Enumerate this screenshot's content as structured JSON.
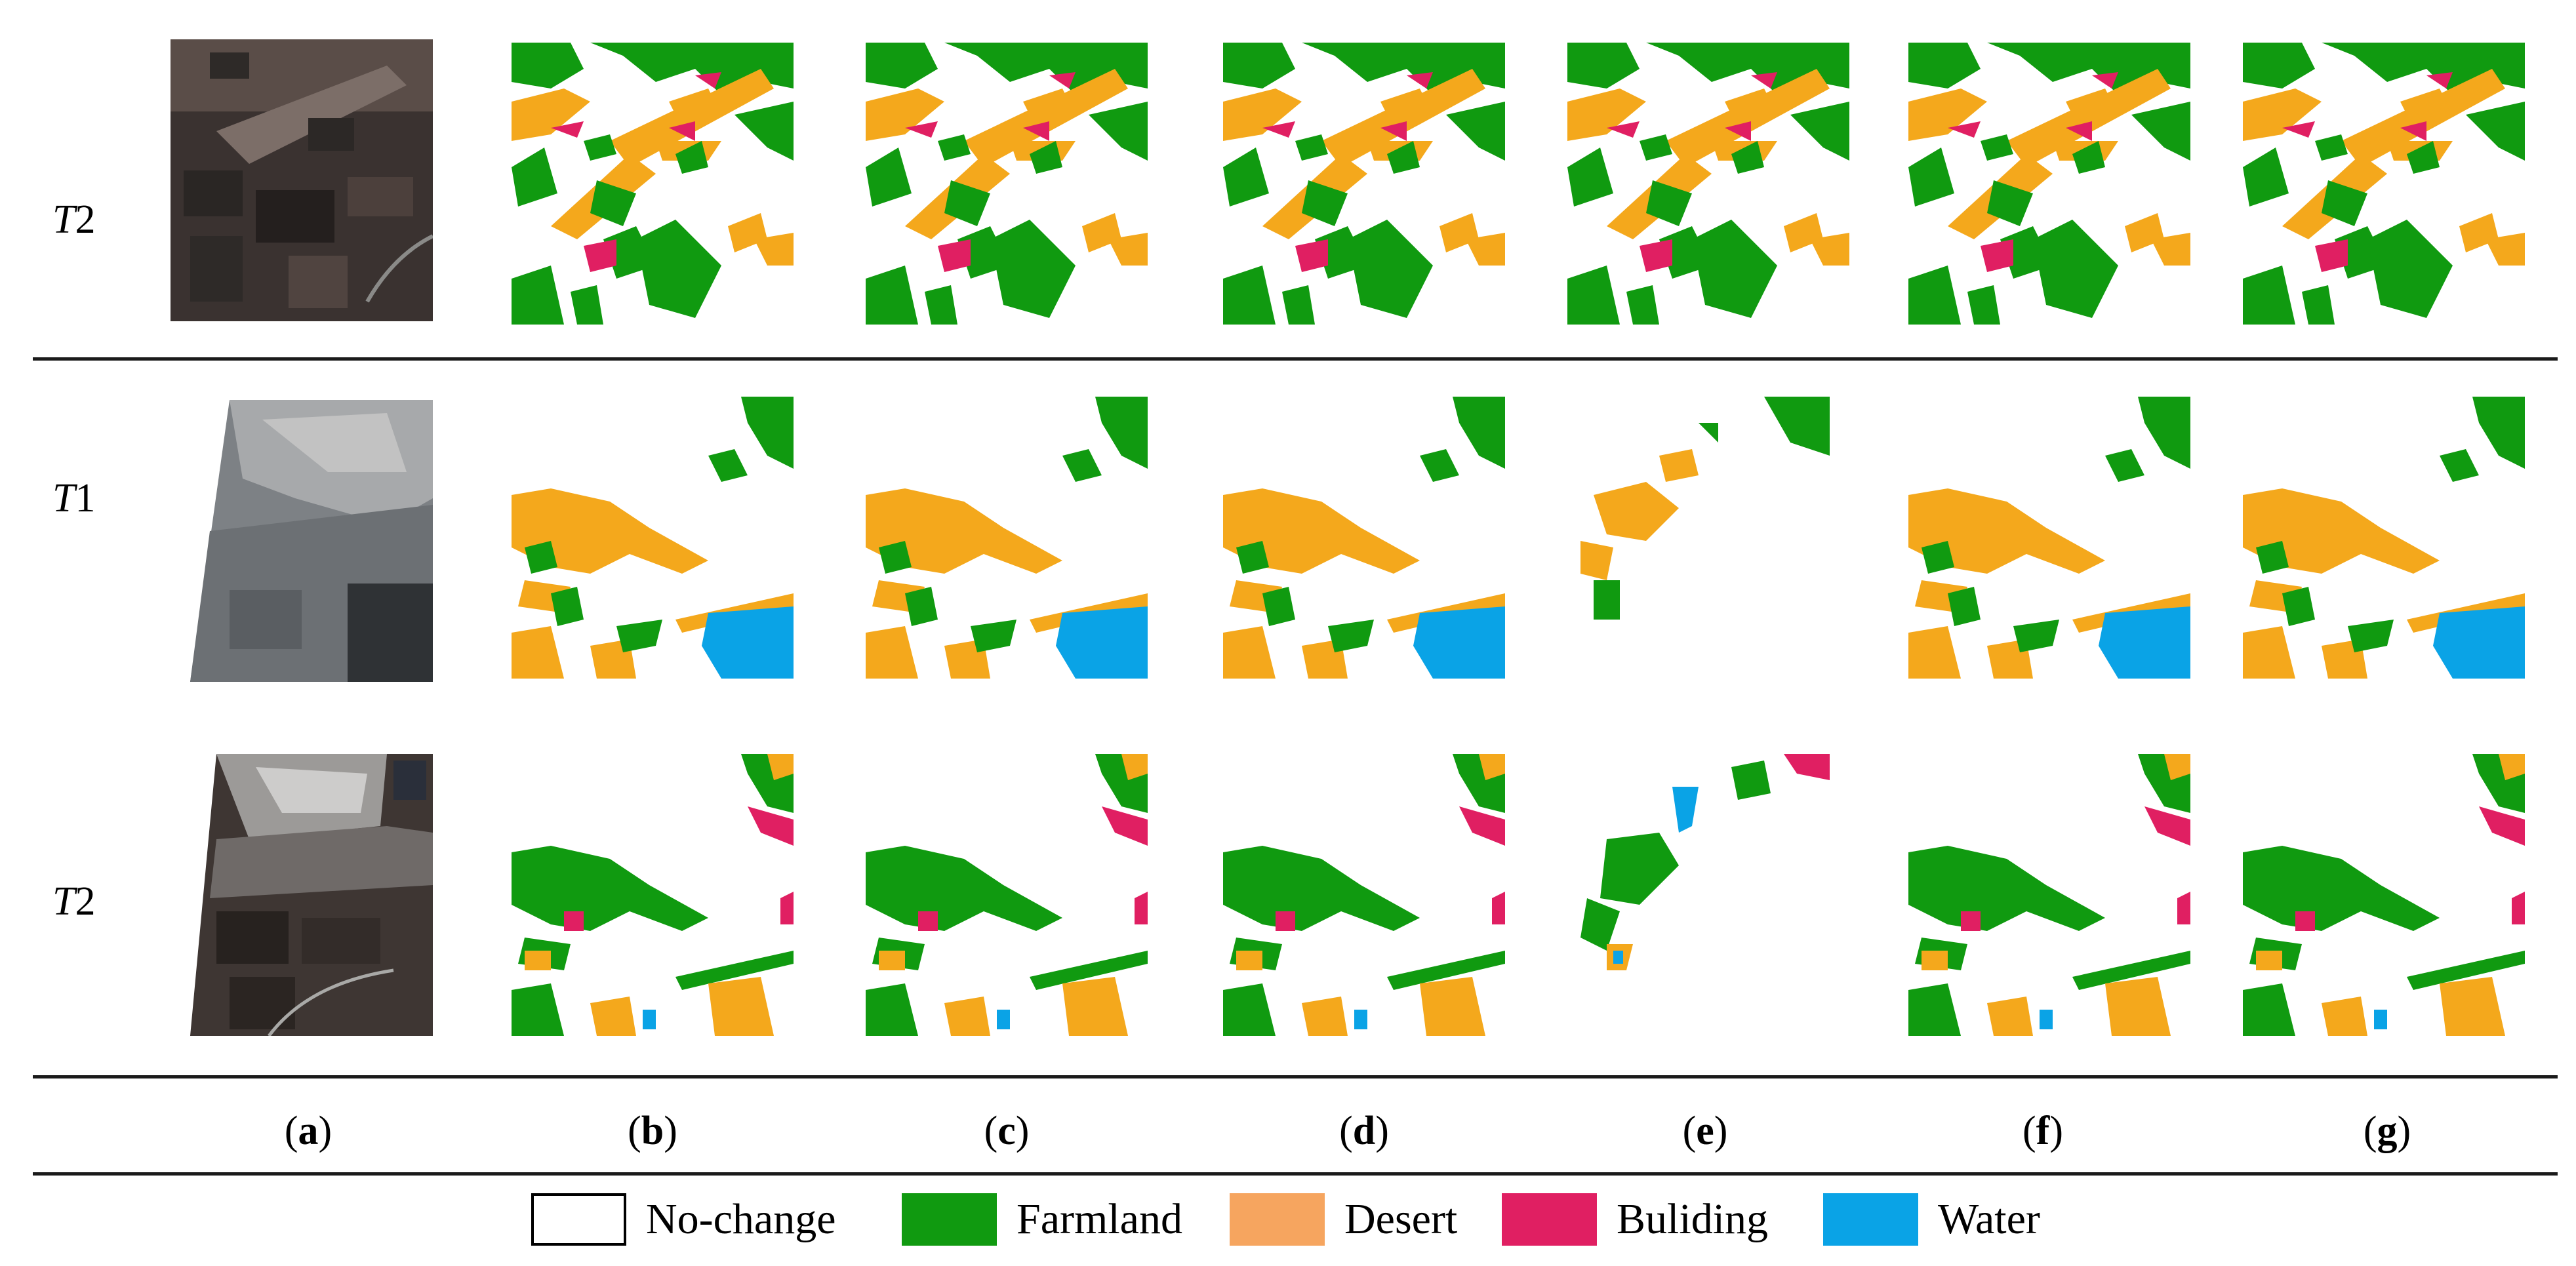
{
  "figure": {
    "rows": [
      {
        "prefix": "T",
        "suffix": "2"
      },
      {
        "prefix": "T",
        "suffix": "1"
      },
      {
        "prefix": "T",
        "suffix": "2"
      }
    ],
    "columns": [
      "a",
      "b",
      "c",
      "d",
      "e",
      "f",
      "g"
    ],
    "legend": [
      {
        "label": "No-change",
        "color": "#ffffff"
      },
      {
        "label": "Farmland",
        "color": "#109a10"
      },
      {
        "label": "Desert",
        "color": "#f6a55f"
      },
      {
        "label": "Buliding",
        "color": "#e01f62"
      },
      {
        "label": "Water",
        "color": "#0aa3e6"
      }
    ],
    "palette": {
      "farmland": "#109a10",
      "desert_map": "#f4a81c",
      "building": "#e01f62",
      "water": "#0aa3e6",
      "rule": "#1a1a1a"
    }
  }
}
